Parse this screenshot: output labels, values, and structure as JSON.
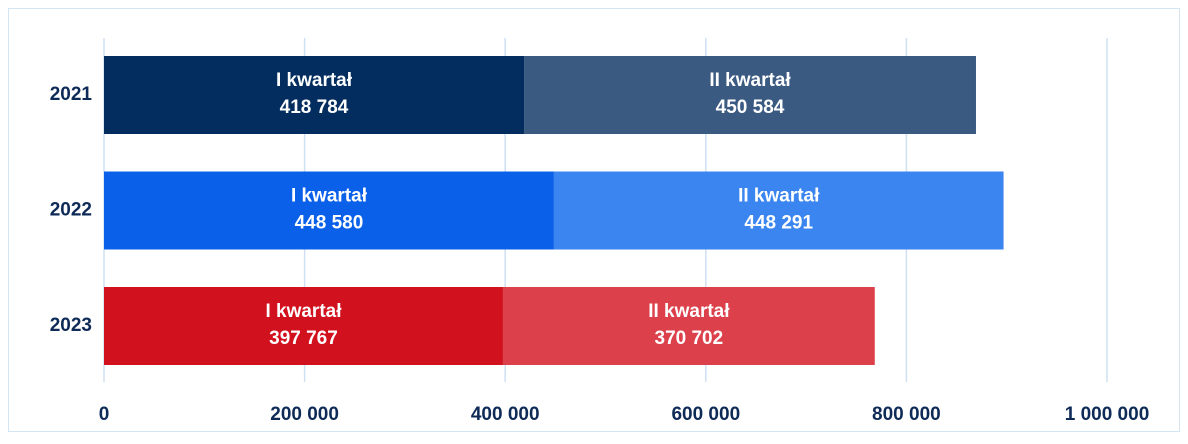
{
  "chart_data": {
    "type": "stacked-bar-horizontal",
    "categories": [
      "2021",
      "2022",
      "2023"
    ],
    "series": [
      {
        "name": "I kwartał",
        "colors": [
          "#032d5f",
          "#0a60e9",
          "#d1111e"
        ],
        "values": [
          418784,
          448580,
          397767
        ],
        "value_labels": [
          "418 784",
          "448 580",
          "397 767"
        ]
      },
      {
        "name": "II kwartał",
        "colors": [
          "#3b5a82",
          "#3b85f0",
          "#dc414b"
        ],
        "values": [
          450584,
          448291,
          370702
        ],
        "value_labels": [
          "450 584",
          "448 291",
          "370 702"
        ]
      }
    ],
    "xlim": [
      0,
      1000000
    ],
    "xticks": [
      0,
      {
        "value": 200000,
        "label": "200 000"
      },
      {
        "value": 400000,
        "label": "400 000"
      },
      {
        "value": 600000,
        "label": "600 000"
      },
      {
        "value": 800000,
        "label": "800 000"
      },
      {
        "value": 1000000,
        "label": "1 000 000"
      }
    ],
    "grid": true
  }
}
